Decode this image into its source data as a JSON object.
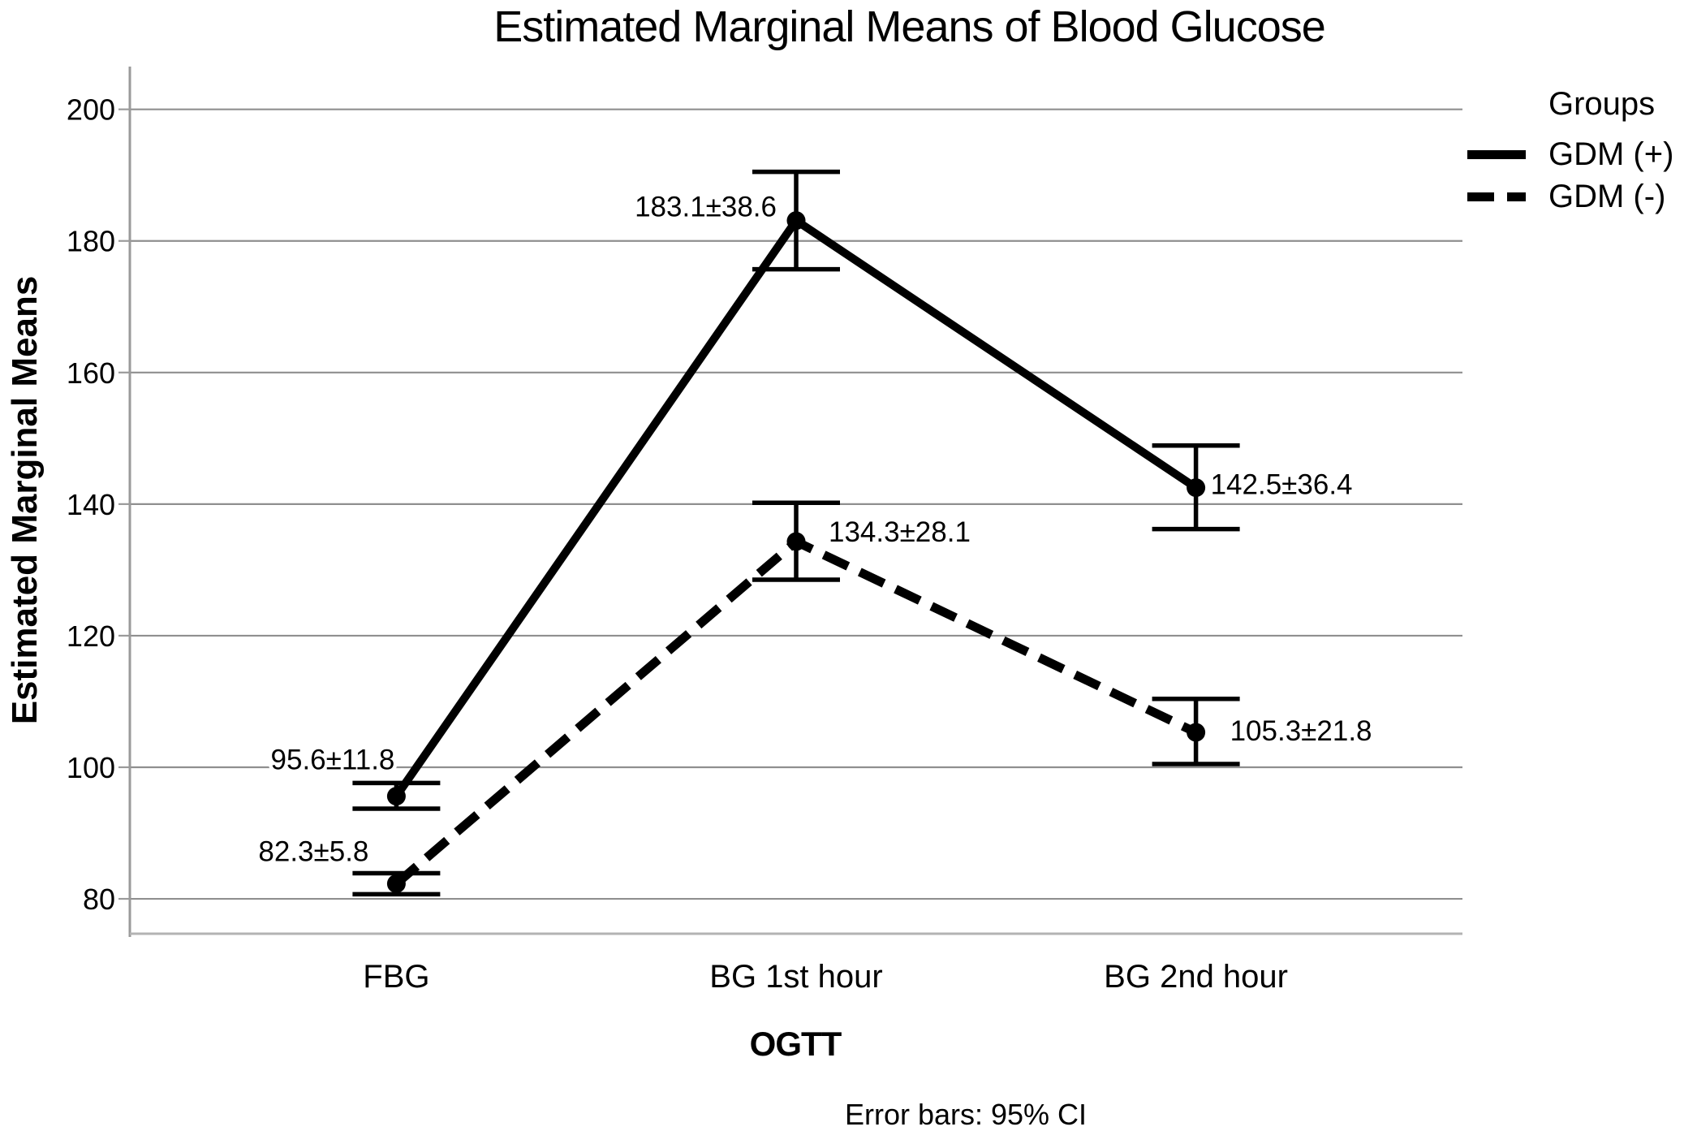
{
  "chart_data": {
    "type": "line",
    "title": "Estimated Marginal Means of Blood Glucose",
    "xlabel": "OGTT",
    "ylabel": "Estimated Marginal Means",
    "footnote": "Error bars: 95% CI",
    "categories": [
      "FBG",
      "BG 1st hour",
      "BG 2nd hour"
    ],
    "y_ticks": [
      80,
      100,
      120,
      140,
      160,
      180,
      200
    ],
    "ylim": [
      74.7,
      206.5
    ],
    "grid": true,
    "colors": {
      "series": "#000000",
      "gridline": "#8f8f8f",
      "axis": "#9a9a9a",
      "frame": "#b3b3b3",
      "text": "#000000"
    },
    "legend": {
      "title": "Groups",
      "position": "top-right",
      "entries": [
        {
          "name": "GDM (+)",
          "line_style": "solid"
        },
        {
          "name": "GDM (-)",
          "line_style": "dashed"
        }
      ]
    },
    "error_bar_note": "95% CI",
    "series": [
      {
        "name": "GDM (+)",
        "line_style": "solid",
        "color": "#000000",
        "values": [
          95.6,
          183.1,
          142.5
        ],
        "sd": [
          11.8,
          38.6,
          36.4
        ],
        "ci_low": [
          93.7,
          175.7,
          136.2
        ],
        "ci_high": [
          97.6,
          190.5,
          148.9
        ],
        "point_labels": [
          "95.6±11.8",
          "183.1±38.6",
          "142.5±36.4"
        ],
        "label_pos": [
          {
            "anchor": "end",
            "dx": -2,
            "dy": -33
          },
          {
            "anchor": "end",
            "dx": -24,
            "dy": -5
          },
          {
            "anchor": "start",
            "dx": 18,
            "dy": 8
          }
        ]
      },
      {
        "name": "GDM (-)",
        "line_style": "dashed",
        "color": "#000000",
        "values": [
          82.3,
          134.3,
          105.3
        ],
        "sd": [
          5.8,
          28.1,
          21.8
        ],
        "ci_low": [
          80.7,
          128.5,
          100.5
        ],
        "ci_high": [
          83.9,
          140.2,
          110.4
        ],
        "point_labels": [
          "82.3±5.8",
          "134.3±28.1",
          "105.3±21.8"
        ],
        "label_pos": [
          {
            "anchor": "end",
            "dx": -34,
            "dy": -28
          },
          {
            "anchor": "start",
            "dx": 40,
            "dy": 0
          },
          {
            "anchor": "start",
            "dx": 42,
            "dy": 10
          }
        ]
      }
    ]
  }
}
